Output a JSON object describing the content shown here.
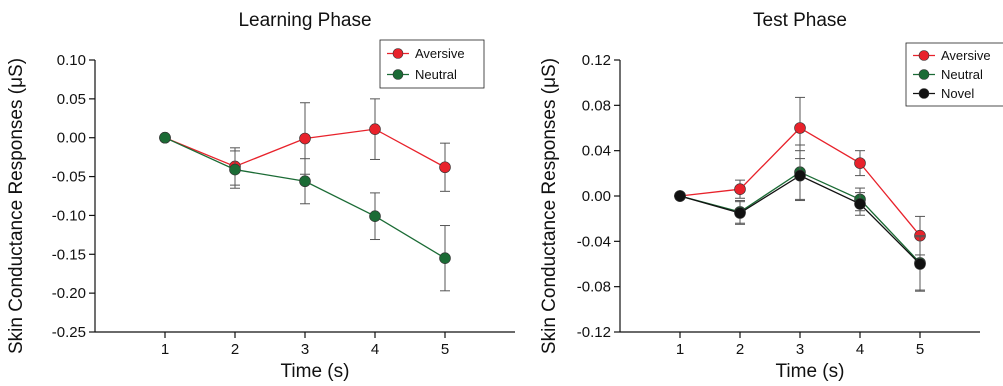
{
  "chart_data": [
    {
      "type": "line",
      "title": "Learning Phase",
      "xlabel": "Time (s)",
      "ylabel": "Skin Conductance Responses (μS)",
      "x": [
        1,
        2,
        3,
        4,
        5
      ],
      "x_ticks": [
        "1",
        "2",
        "3",
        "4",
        "5"
      ],
      "xlim": [
        0,
        6
      ],
      "ylim": [
        -0.25,
        0.1
      ],
      "y_ticks": [
        "0.10",
        "0.05",
        "0.00",
        "-0.05",
        "-0.10",
        "-0.15",
        "-0.20",
        "-0.25"
      ],
      "y_tick_values": [
        0.1,
        0.05,
        0.0,
        -0.05,
        -0.1,
        -0.15,
        -0.2,
        -0.25
      ],
      "legend": "top-right",
      "grid": false,
      "series": [
        {
          "name": "Aversive",
          "color": "#e8222b",
          "values": [
            0.0,
            -0.037,
            -0.001,
            0.011,
            -0.038
          ],
          "errors": [
            0.0,
            0.024,
            0.046,
            0.039,
            0.031
          ]
        },
        {
          "name": "Neutral",
          "color": "#1b6b35",
          "values": [
            0.0,
            -0.041,
            -0.056,
            -0.101,
            -0.155
          ],
          "errors": [
            0.0,
            0.024,
            0.029,
            0.03,
            0.042
          ]
        }
      ]
    },
    {
      "type": "line",
      "title": "Test Phase",
      "xlabel": "Time (s)",
      "ylabel": "Skin Conductance Responses (μS)",
      "x": [
        1,
        2,
        3,
        4,
        5
      ],
      "x_ticks": [
        "1",
        "2",
        "3",
        "4",
        "5"
      ],
      "xlim": [
        0,
        6
      ],
      "ylim": [
        -0.12,
        0.12
      ],
      "y_ticks": [
        "0.12",
        "0.08",
        "0.04",
        "0.00",
        "-0.04",
        "-0.08",
        "-0.12"
      ],
      "y_tick_values": [
        0.12,
        0.08,
        0.04,
        0.0,
        -0.04,
        -0.08,
        -0.12
      ],
      "legend": "top-right",
      "grid": false,
      "series": [
        {
          "name": "Aversive",
          "color": "#e8222b",
          "values": [
            0.0,
            0.006,
            0.06,
            0.029,
            -0.035
          ],
          "errors": [
            0.0,
            0.008,
            0.027,
            0.011,
            0.017
          ]
        },
        {
          "name": "Neutral",
          "color": "#1b6b35",
          "values": [
            0.0,
            -0.014,
            0.021,
            -0.003,
            -0.059
          ],
          "errors": [
            0.0,
            0.01,
            0.024,
            0.01,
            0.024
          ]
        },
        {
          "name": "Novel",
          "color": "#111111",
          "values": [
            0.0,
            -0.015,
            0.018,
            -0.007,
            -0.06
          ],
          "errors": [
            0.0,
            0.01,
            0.022,
            0.01,
            0.024
          ]
        }
      ]
    }
  ]
}
